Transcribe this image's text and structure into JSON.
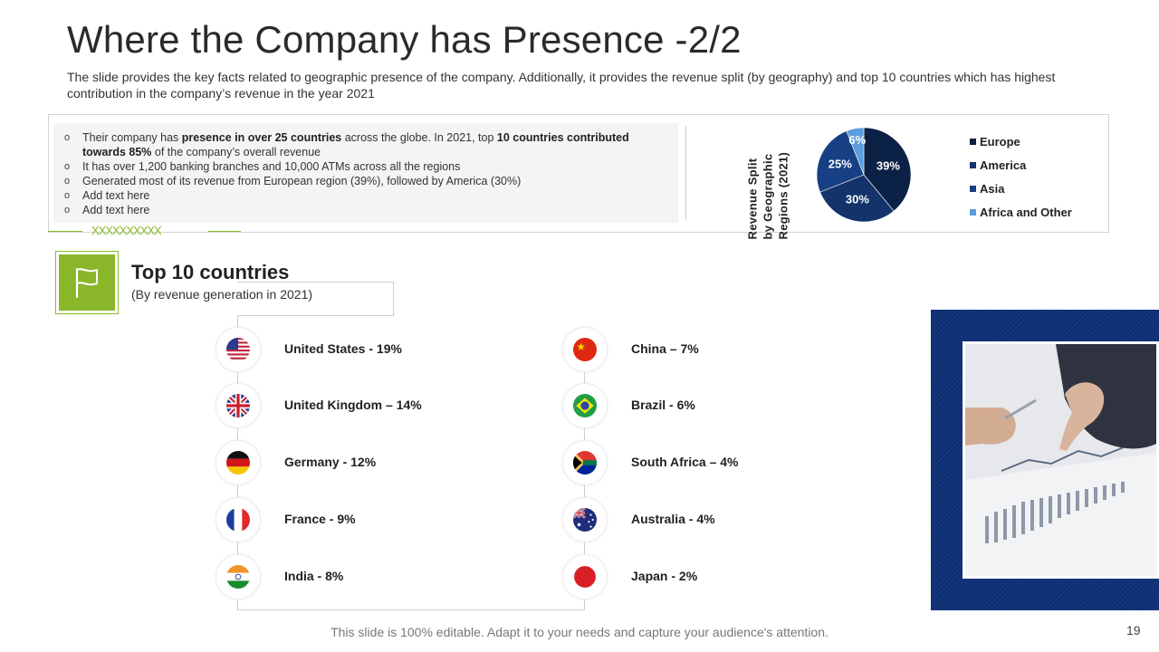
{
  "slide": {
    "title": "Where the Company has Presence -2/2",
    "subtitle": "The slide provides the key facts related to geographic presence of the company. Additionally,  it provides the revenue split (by geography) and top 10 countries which has highest contribution in the company’s revenue in the year 2021",
    "footer": "This slide is 100% editable. Adapt it to your needs and capture your audience's attention.",
    "page_number": "19"
  },
  "facts": {
    "bullet_mark": "o",
    "bullets": [
      {
        "parts": [
          {
            "text": "Their company has ",
            "bold": false
          },
          {
            "text": "presence in over 25 countries",
            "bold": true
          },
          {
            "text": " across the globe. In 2021, top ",
            "bold": false
          },
          {
            "text": "10 countries contributed towards 85%",
            "bold": true
          },
          {
            "text": " of the company’s overall revenue",
            "bold": false
          }
        ]
      },
      {
        "parts": [
          {
            "text": "It has over 1,200 banking branches and 10,000 ATMs across all the regions",
            "bold": false
          }
        ]
      },
      {
        "parts": [
          {
            "text": "Generated  most of its revenue  from European region (39%), followed  by America (30%)",
            "bold": false
          }
        ]
      },
      {
        "parts": [
          {
            "text": "Add text here",
            "bold": false
          }
        ]
      },
      {
        "parts": [
          {
            "text": "Add text here",
            "bold": false
          }
        ]
      }
    ]
  },
  "decoration": {
    "x_marks": "XXXXXXXXXX"
  },
  "chart_data": {
    "type": "pie",
    "title": "Revenue Split by Geographic Regions (2021)",
    "categories": [
      "Europe",
      "America",
      "Asia",
      "Africa and Other"
    ],
    "values": [
      39,
      30,
      25,
      6
    ],
    "labels": [
      "39%",
      "30%",
      "25%",
      "6%"
    ],
    "colors": [
      "#0c2146",
      "#14336a",
      "#173f83",
      "#5b9ee0"
    ],
    "legend_position": "right"
  },
  "top_countries": {
    "title": "Top 10 countries",
    "subtitle": "(By revenue generation in 2021)",
    "left": [
      {
        "label": "United States - 19%",
        "flag": "us-flag-icon"
      },
      {
        "label": "United Kingdom – 14%",
        "flag": "uk-flag-icon"
      },
      {
        "label": "Germany - 12%",
        "flag": "germany-flag-icon"
      },
      {
        "label": "France - 9%",
        "flag": "france-flag-icon"
      },
      {
        "label": "India - 8%",
        "flag": "india-flag-icon"
      }
    ],
    "right": [
      {
        "label": "China – 7%",
        "flag": "china-flag-icon"
      },
      {
        "label": "Brazil - 6%",
        "flag": "brazil-flag-icon"
      },
      {
        "label": "South Africa – 4%",
        "flag": "south-africa-flag-icon"
      },
      {
        "label": "Australia  - 4%",
        "flag": "australia-flag-icon"
      },
      {
        "label": "Japan - 2%",
        "flag": "japan-flag-icon"
      }
    ]
  },
  "photo": {
    "subject": "business-analysis-photo-icon"
  }
}
